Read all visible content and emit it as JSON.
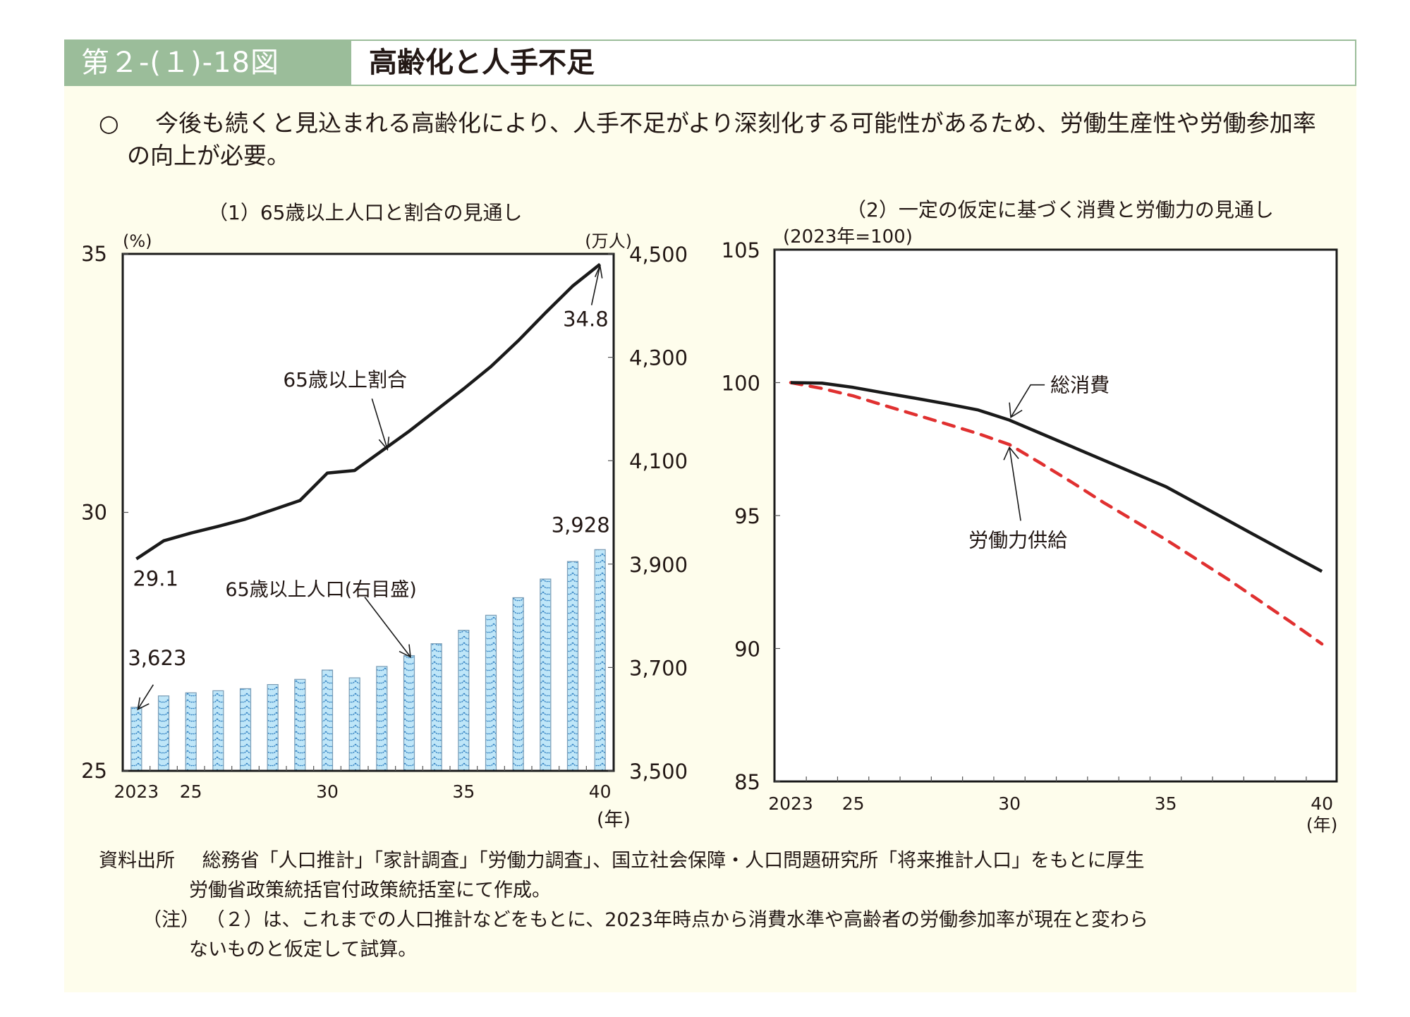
{
  "header": {
    "figure_number": "第２-(１)-18図",
    "title": "高齢化と人手不足"
  },
  "summary": {
    "bullet": "○",
    "text": "今後も続くと見込まれる高齢化により、人手不足がより深刻化する可能性があるため、労働生産性や労働参加率の向上が必要。"
  },
  "colors": {
    "header_band": "#9bbd9a",
    "panel_bg": "#fefdec",
    "bar_fill": "#bfe6f8",
    "bar_pattern": "#2f7fc1",
    "line_black": "#1a1a1a",
    "line_red": "#e03030"
  },
  "chart_data": [
    {
      "type": "bar+line",
      "title": "（1）65歳以上人口と割合の見通し",
      "left_unit": "(%)",
      "right_unit": "(万人)",
      "x_unit": "(年)",
      "x": [
        2023,
        2024,
        2025,
        2026,
        2027,
        2028,
        2029,
        2030,
        2031,
        2032,
        2033,
        2034,
        2035,
        2036,
        2037,
        2038,
        2039,
        2040
      ],
      "x_tick_labels": [
        {
          "year": 2023,
          "label": "2023"
        },
        {
          "year": 2025,
          "label": "25"
        },
        {
          "year": 2030,
          "label": "30"
        },
        {
          "year": 2035,
          "label": "35"
        },
        {
          "year": 2040,
          "label": "40"
        }
      ],
      "left_axis": {
        "range": [
          25,
          35
        ],
        "ticks": [
          "25",
          "30",
          "35"
        ],
        "tick_values": [
          25,
          30,
          35
        ]
      },
      "right_axis": {
        "range": [
          3500,
          4500
        ],
        "ticks": [
          "3,500",
          "3,700",
          "3,900",
          "4,100",
          "4,300",
          "4,500"
        ],
        "tick_values": [
          3500,
          3700,
          3900,
          4100,
          4300,
          4500
        ]
      },
      "series": [
        {
          "name": "65歳以上人口(右目盛)",
          "kind": "bar",
          "axis": "right",
          "values": [
            3623,
            3645,
            3651,
            3655,
            3659,
            3667,
            3677,
            3695,
            3680,
            3702,
            3723,
            3746,
            3772,
            3801,
            3835,
            3871,
            3905,
            3928
          ]
        },
        {
          "name": "65歳以上割合",
          "kind": "line",
          "axis": "left",
          "values": [
            29.1,
            29.45,
            29.6,
            29.73,
            29.87,
            30.05,
            30.23,
            30.76,
            30.81,
            31.19,
            31.57,
            31.98,
            32.39,
            32.82,
            33.32,
            33.86,
            34.38,
            34.8
          ]
        }
      ],
      "annotations": {
        "line_label": "65歳以上割合",
        "bar_label": "65歳以上人口(右目盛)",
        "line_start_label": "29.1",
        "line_end_label": "34.8",
        "bar_start_label": "3,623",
        "bar_end_label": "3,928"
      }
    },
    {
      "type": "line",
      "title": "（2）一定の仮定に基づく消費と労働力の見通し",
      "ylabel": "(2023年=100)",
      "x_unit": "(年)",
      "x": [
        2023,
        2024,
        2025,
        2026,
        2027,
        2028,
        2029,
        2030,
        2031,
        2032,
        2033,
        2034,
        2035,
        2036,
        2037,
        2038,
        2039,
        2040
      ],
      "x_tick_labels": [
        {
          "year": 2023,
          "label": "2023"
        },
        {
          "year": 2025,
          "label": "25"
        },
        {
          "year": 2030,
          "label": "30"
        },
        {
          "year": 2035,
          "label": "35"
        },
        {
          "year": 2040,
          "label": "40"
        }
      ],
      "ylim": [
        85,
        105
      ],
      "y_ticks": [
        "85",
        "90",
        "95",
        "100",
        "105"
      ],
      "y_tick_values": [
        85,
        90,
        95,
        100,
        105
      ],
      "series": [
        {
          "name": "総消費",
          "style": "solid",
          "color": "#1a1a1a",
          "values": [
            100,
            99.98,
            99.82,
            99.61,
            99.41,
            99.2,
            98.97,
            98.59,
            98.09,
            97.59,
            97.09,
            96.59,
            96.09,
            95.45,
            94.81,
            94.17,
            93.53,
            92.9
          ]
        },
        {
          "name": "労働力供給",
          "style": "dashed",
          "color": "#e03030",
          "values": [
            100,
            99.78,
            99.5,
            99.14,
            98.79,
            98.44,
            98.08,
            97.67,
            96.97,
            96.25,
            95.5,
            94.8,
            94.1,
            93.35,
            92.6,
            91.8,
            91.0,
            90.17
          ]
        }
      ]
    }
  ],
  "source": {
    "label": "資料出所",
    "line1": "総務省「人口推計」「家計調査」「労働力調査」、国立社会保障・人口問題研究所「将来推計人口」をもとに厚生",
    "line2": "労働省政策統括官付政策統括室にて作成。",
    "note_label": "（注）",
    "note_line1": "（２）は、これまでの人口推計などをもとに、2023年時点から消費水準や高齢者の労働参加率が現在と変わら",
    "note_line2": "ないものと仮定して試算。"
  }
}
